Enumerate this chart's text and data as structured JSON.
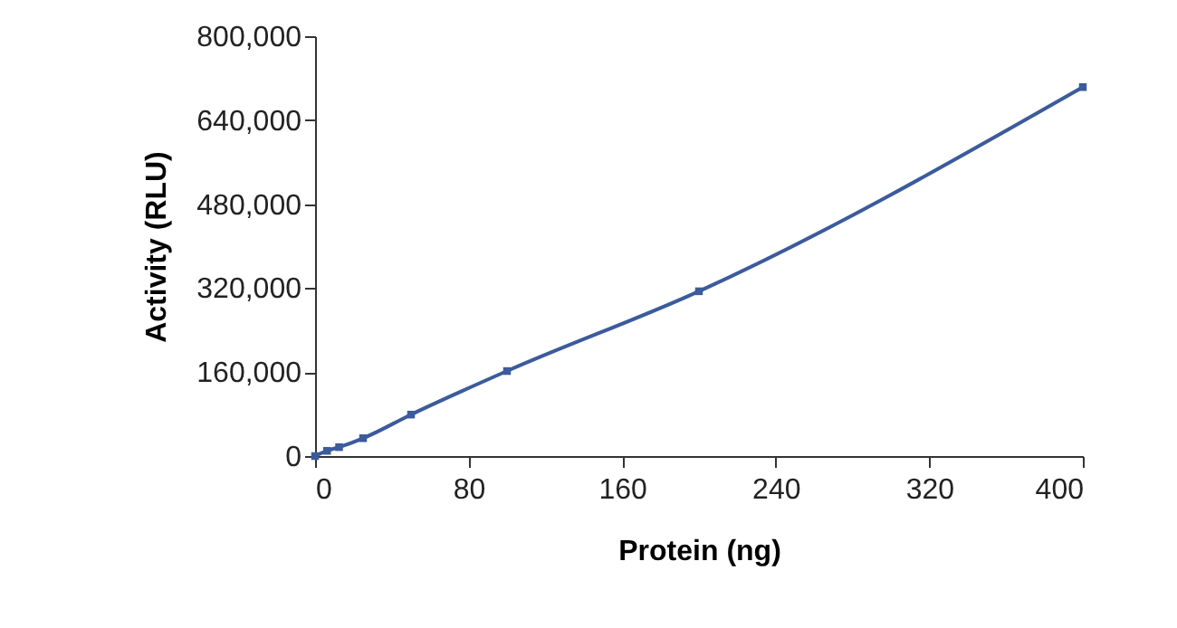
{
  "chart_data": {
    "type": "line",
    "xlabel": "Protein (ng)",
    "ylabel": "Activity (RLU)",
    "x": [
      0,
      6.25,
      12.5,
      25,
      50,
      100,
      200,
      400
    ],
    "series": [
      {
        "color": "#3b5b9b",
        "values": [
          0,
          10000,
          17000,
          34000,
          79000,
          162000,
          314000,
          703000
        ]
      }
    ],
    "xlim": [
      0,
      400
    ],
    "xticks": [
      0,
      80,
      160,
      240,
      320,
      400
    ],
    "ylim": [
      0,
      800000
    ],
    "yticks": [
      {
        "value": 0,
        "label": "0"
      },
      {
        "value": 160000,
        "label": "160,000"
      },
      {
        "value": 320000,
        "label": "320,000"
      },
      {
        "value": 480000,
        "label": "480,000"
      },
      {
        "value": 640000,
        "label": "640,000"
      },
      {
        "value": 800000,
        "label": "800,000"
      }
    ],
    "grid": false,
    "marker": "square",
    "line_style": "solid"
  }
}
